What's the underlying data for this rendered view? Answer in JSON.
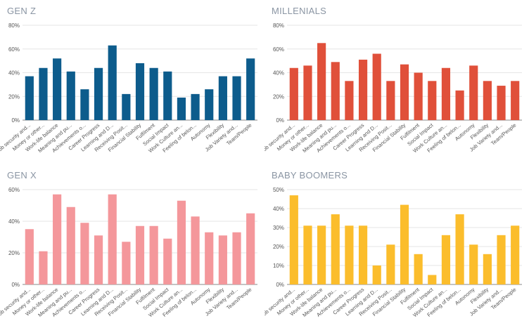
{
  "chart_data": [
    {
      "type": "bar",
      "title": "GEN Z",
      "color": "#0d5c8c",
      "ylim": [
        0,
        80
      ],
      "yticks": [
        "0%",
        "20%",
        "40%",
        "60%",
        "80%"
      ],
      "categories": [
        "Job security and...",
        "Money or other...",
        "Work-life balance",
        "Meaning and pu...",
        "Achievements o...",
        "Career Progress",
        "Learning and D...",
        "Receiving Posit...",
        "Financial Stability",
        "Fulfilment",
        "Social Impact",
        "Work Culture an...",
        "Feeling of belon...",
        "Autonomy",
        "Flexibility",
        "Job Variety and...",
        "Team/People"
      ],
      "values": [
        37,
        44,
        52,
        41,
        26,
        44,
        63,
        22,
        48,
        44,
        41,
        19,
        22,
        26,
        37,
        37,
        52
      ]
    },
    {
      "type": "bar",
      "title": "MILLENIALS",
      "color": "#e0503a",
      "ylim": [
        0,
        80
      ],
      "yticks": [
        "0%",
        "20%",
        "40%",
        "60%",
        "80%"
      ],
      "categories": [
        "Job security and...",
        "Money or other...",
        "Work-life balance",
        "Meaning and pu...",
        "Achievements o...",
        "Career Progress",
        "Learning and D...",
        "Receiving Posit...",
        "Financial Stability",
        "Fulfilment",
        "Social Impact",
        "Work Culture an...",
        "Feeling of belon...",
        "Autonomy",
        "Flexibility",
        "Job Variety and...",
        "Team/People"
      ],
      "values": [
        44,
        46,
        65,
        49,
        33,
        51,
        56,
        33,
        47,
        40,
        33,
        44,
        25,
        46,
        33,
        29,
        33
      ]
    },
    {
      "type": "bar",
      "title": "GEN X",
      "color": "#f4979b",
      "ylim": [
        0,
        60
      ],
      "yticks": [
        "0%",
        "20%",
        "40%",
        "60%"
      ],
      "categories": [
        "Job security and...",
        "Money or other...",
        "Work-life balance",
        "Meaning and pu...",
        "Achievements o...",
        "Career Progress",
        "Learning and D...",
        "Receiving Posit...",
        "Financial Stability",
        "Fulfilment",
        "Social Impact",
        "Work Culture an...",
        "Feeling of belon...",
        "Autonomy",
        "Flexibility",
        "Job Variety and...",
        "Team/People"
      ],
      "values": [
        35,
        21,
        57,
        49,
        39,
        31,
        57,
        27,
        37,
        37,
        29,
        53,
        43,
        33,
        31,
        33,
        45
      ]
    },
    {
      "type": "bar",
      "title": "BABY BOOMERS",
      "color": "#fbbd2c",
      "ylim": [
        0,
        50
      ],
      "yticks": [
        "0%",
        "10%",
        "20%",
        "30%",
        "40%",
        "50%"
      ],
      "categories": [
        "Job security and...",
        "Money or other...",
        "Work-life balance",
        "Meaning and pu...",
        "Achievements o...",
        "Career Progress",
        "Learning and D...",
        "Receiving Posit...",
        "Financial Stability",
        "Fulfilment",
        "Social Impact",
        "Work Culture an...",
        "Feeling of belon...",
        "Autonomy",
        "Flexibility",
        "Job Variety and...",
        "Team/People"
      ],
      "values": [
        47,
        31,
        31,
        37,
        31,
        31,
        10,
        21,
        42,
        16,
        5,
        26,
        37,
        21,
        16,
        26,
        31
      ]
    }
  ]
}
